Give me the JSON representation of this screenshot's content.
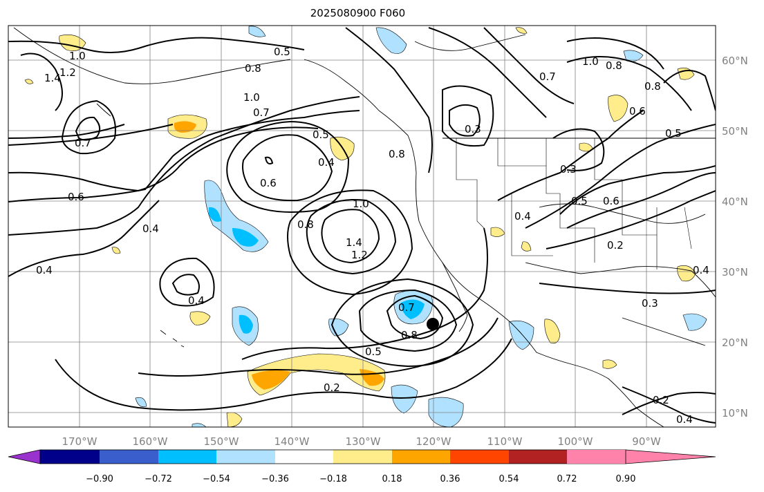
{
  "title": "2025080900 F060",
  "map": {
    "lon_ticks": [
      "170°W",
      "160°W",
      "150°W",
      "140°W",
      "130°W",
      "120°W",
      "110°W",
      "100°W",
      "90°W"
    ],
    "lat_ticks": [
      "60°N",
      "50°N",
      "40°N",
      "30°N",
      "20°N",
      "10°N"
    ],
    "contour_labels": [
      "0.5",
      "0.8",
      "1.0",
      "0.7",
      "1.4",
      "1.2",
      "1.0",
      "0.7",
      "0.6",
      "0.6",
      "0.5",
      "0.4",
      "0.4",
      "0.4",
      "0.4",
      "1.0",
      "0.8",
      "1.4",
      "1.2",
      "0.7",
      "0.8",
      "0.3",
      "0.3",
      "0.4",
      "0.5",
      "0.6",
      "0.2",
      "0.3",
      "0.5",
      "0.2",
      "0.6",
      "0.8",
      "1.0",
      "0.7",
      "0.5",
      "0.8",
      "0.8",
      "0.2",
      "0.4",
      "0.4"
    ],
    "marker": "storm-center"
  },
  "colorbar": {
    "tick_labels": [
      "−0.90",
      "−0.72",
      "−0.54",
      "−0.36",
      "−0.18",
      "0.18",
      "0.36",
      "0.54",
      "0.72",
      "0.90"
    ],
    "colors": [
      "#9a32cd",
      "#00008b",
      "#3a5fcd",
      "#00bfff",
      "#b0e2ff",
      "#ffffff",
      "#ffec8b",
      "#ffa500",
      "#ff4500",
      "#b22222",
      "#ff82ab"
    ]
  }
}
